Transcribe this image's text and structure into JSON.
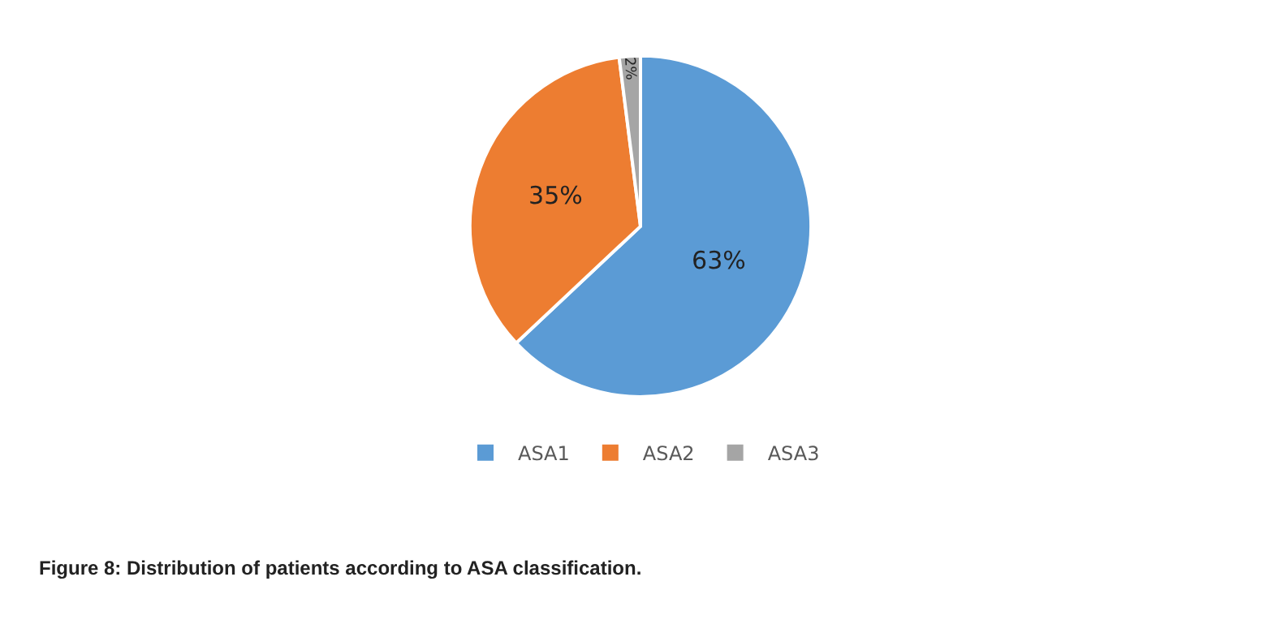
{
  "chart_data": {
    "type": "pie",
    "categories": [
      "ASA1",
      "ASA2",
      "ASA3"
    ],
    "values": [
      63,
      35,
      2
    ],
    "value_labels": [
      "63%",
      "35%",
      "2%"
    ],
    "colors": [
      "#5b9bd5",
      "#ed7d31",
      "#a5a5a5"
    ],
    "legend": "bottom",
    "annotations": [
      "Figure 8: Distribution of patients according to ASA classification."
    ]
  }
}
